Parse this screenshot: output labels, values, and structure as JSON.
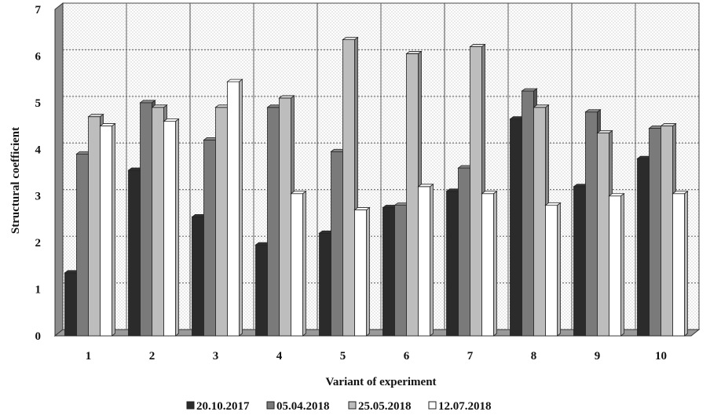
{
  "chart_data": {
    "type": "bar",
    "title": "",
    "xlabel": "Variant of experiment",
    "ylabel": "Structural coefficient",
    "ylim": [
      0,
      7
    ],
    "yticks": [
      0,
      1,
      2,
      3,
      4,
      5,
      6,
      7
    ],
    "grid": true,
    "legend_position": "bottom",
    "categories": [
      "1",
      "2",
      "3",
      "4",
      "5",
      "6",
      "7",
      "8",
      "9",
      "10"
    ],
    "series": [
      {
        "name": "20.10.2017",
        "color": "#2b2b2b",
        "values": [
          1.35,
          3.55,
          2.55,
          1.95,
          2.2,
          2.75,
          3.1,
          4.65,
          3.2,
          3.8
        ]
      },
      {
        "name": "05.04.2018",
        "color": "#7a7a7a",
        "values": [
          3.9,
          5.0,
          4.2,
          4.9,
          3.95,
          2.8,
          3.6,
          5.25,
          4.8,
          4.45
        ]
      },
      {
        "name": "25.05.2018",
        "color": "#bdbdbd",
        "values": [
          4.7,
          4.9,
          4.9,
          5.1,
          6.35,
          6.05,
          6.2,
          4.9,
          4.35,
          4.5
        ]
      },
      {
        "name": "12.07.2018",
        "color": "#ffffff",
        "values": [
          4.5,
          4.6,
          5.45,
          3.05,
          2.7,
          3.2,
          3.05,
          2.8,
          3.0,
          3.05
        ]
      }
    ]
  }
}
